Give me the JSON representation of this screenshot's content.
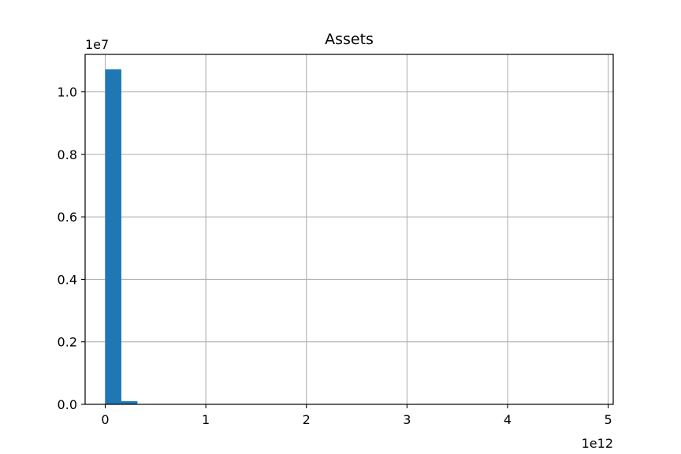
{
  "chart_data": {
    "type": "bar",
    "title": "Assets",
    "xlabel": "",
    "ylabel": "",
    "x_offset_label": "1e12",
    "y_offset_label": "1e7",
    "xlim": [
      -0.2,
      5.05
    ],
    "ylim": [
      0,
      1.12
    ],
    "x_ticks": [
      0,
      1,
      2,
      3,
      4,
      5
    ],
    "x_tick_labels": [
      "0",
      "1",
      "2",
      "3",
      "4",
      "5"
    ],
    "y_ticks": [
      0.0,
      0.2,
      0.4,
      0.6,
      0.8,
      1.0
    ],
    "y_tick_labels": [
      "0.0",
      "0.2",
      "0.4",
      "0.6",
      "0.8",
      "1.0"
    ],
    "grid": true,
    "bar_color": "#1f77b4",
    "bins": [
      {
        "x0": 0.0,
        "x1": 0.16,
        "value": 1.072
      },
      {
        "x0": 0.16,
        "x1": 0.32,
        "value": 0.01
      }
    ]
  }
}
